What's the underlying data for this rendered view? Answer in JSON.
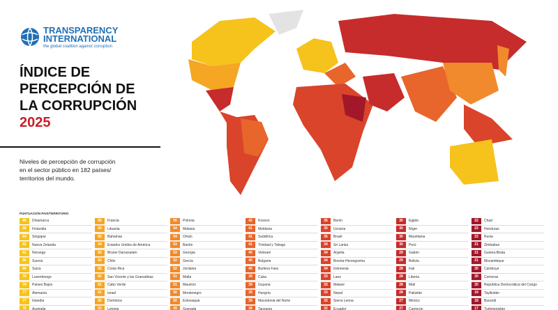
{
  "header": {
    "logo_name": "TRANSPARENCY INTERNATIONAL",
    "logo_tagline": "the global coalition against corruption",
    "title_lines": [
      "ÍNDICE DE",
      "PERCEPCIÓN DE",
      "LA CORRUPCIÓN"
    ],
    "year": "2025",
    "description_lines": [
      "Niveles de percepción de corrupción",
      "en el sector público en 182 países/",
      "territorios del mundo."
    ]
  },
  "table": {
    "header": "PUNTUACIÓN PAÍS/TERRITORIO",
    "columns": [
      {
        "color": "#f6c21c",
        "rows": [
          {
            "score": 89,
            "country": "Dinamarca"
          },
          {
            "score": 88,
            "country": "Finlandia"
          },
          {
            "score": 84,
            "country": "Singapur"
          },
          {
            "score": 81,
            "country": "Nueva Zelanda"
          },
          {
            "score": 81,
            "country": "Noruega"
          },
          {
            "score": 80,
            "country": "Suecia"
          },
          {
            "score": 80,
            "country": "Suiza"
          },
          {
            "score": 78,
            "country": "Luxemburgo"
          },
          {
            "score": 78,
            "country": "Países Bajos"
          },
          {
            "score": 77,
            "country": "Alemania"
          },
          {
            "score": 77,
            "country": "Islandia"
          },
          {
            "score": 76,
            "country": "Australia"
          }
        ]
      },
      {
        "color": "#f5a623",
        "rows": [
          {
            "score": 66,
            "country": "Francia"
          },
          {
            "score": 65,
            "country": "Lituania"
          },
          {
            "score": 65,
            "country": "Bahamas"
          },
          {
            "score": 64,
            "country": "Estados Unidos de América"
          },
          {
            "score": 63,
            "country": "Brunei Darussalam"
          },
          {
            "score": 63,
            "country": "Chile"
          },
          {
            "score": 62,
            "country": "Costa Rica"
          },
          {
            "score": 62,
            "country": "San Vicente y las Granadinas"
          },
          {
            "score": 61,
            "country": "Cabo Verde"
          },
          {
            "score": 61,
            "country": "Israel"
          },
          {
            "score": 60,
            "country": "Dominica"
          },
          {
            "score": 60,
            "country": "Letonia"
          }
        ]
      },
      {
        "color": "#f08a2c",
        "rows": [
          {
            "score": 55,
            "country": "Polonia"
          },
          {
            "score": 54,
            "country": "Malasia"
          },
          {
            "score": 54,
            "country": "Omán"
          },
          {
            "score": 53,
            "country": "Baréin"
          },
          {
            "score": 53,
            "country": "Georgia"
          },
          {
            "score": 52,
            "country": "Grecia"
          },
          {
            "score": 52,
            "country": "Jordania"
          },
          {
            "score": 51,
            "country": "Malta"
          },
          {
            "score": 51,
            "country": "Mauricio"
          },
          {
            "score": 50,
            "country": "Montenegro"
          },
          {
            "score": 50,
            "country": "Eslovaquia"
          },
          {
            "score": 49,
            "country": "Granada"
          }
        ]
      },
      {
        "color": "#e8652b",
        "rows": [
          {
            "score": 42,
            "country": "Kosovo"
          },
          {
            "score": 41,
            "country": "Moldavia"
          },
          {
            "score": 41,
            "country": "Sudáfrica"
          },
          {
            "score": 41,
            "country": "Trinidad y Tobago"
          },
          {
            "score": 40,
            "country": "Vietnam"
          },
          {
            "score": 40,
            "country": "Bulgaria"
          },
          {
            "score": 40,
            "country": "Burkina Faso"
          },
          {
            "score": 39,
            "country": "Cuba"
          },
          {
            "score": 39,
            "country": "Guyana"
          },
          {
            "score": 39,
            "country": "Hungría"
          },
          {
            "score": 39,
            "country": "Macedonia del Norte"
          },
          {
            "score": 38,
            "country": "Tanzania"
          }
        ]
      },
      {
        "color": "#d9442b",
        "rows": [
          {
            "score": 35,
            "country": "Benín"
          },
          {
            "score": 35,
            "country": "Ucrania"
          },
          {
            "score": 35,
            "country": "Brasil"
          },
          {
            "score": 34,
            "country": "Sri Lanka"
          },
          {
            "score": 34,
            "country": "Argelia"
          },
          {
            "score": 34,
            "country": "Bosnia-Herzegovina"
          },
          {
            "score": 34,
            "country": "Indonesia"
          },
          {
            "score": 33,
            "country": "Laos"
          },
          {
            "score": 33,
            "country": "Malawi"
          },
          {
            "score": 33,
            "country": "Nepal"
          },
          {
            "score": 33,
            "country": "Sierra Leona"
          },
          {
            "score": 32,
            "country": "Ecuador"
          }
        ]
      },
      {
        "color": "#c62c2b",
        "rows": [
          {
            "score": 30,
            "country": "Egipto"
          },
          {
            "score": 30,
            "country": "Níger"
          },
          {
            "score": 30,
            "country": "Mauritania"
          },
          {
            "score": 30,
            "country": "Perú"
          },
          {
            "score": 29,
            "country": "Gabón"
          },
          {
            "score": 29,
            "country": "Bolivia"
          },
          {
            "score": 28,
            "country": "Irak"
          },
          {
            "score": 28,
            "country": "Liberia"
          },
          {
            "score": 28,
            "country": "Malí"
          },
          {
            "score": 28,
            "country": "Pakistán"
          },
          {
            "score": 27,
            "country": "México"
          },
          {
            "score": 27,
            "country": "Camerún"
          }
        ]
      },
      {
        "color": "#a3172a",
        "rows": [
          {
            "score": 22,
            "country": "Chad"
          },
          {
            "score": 22,
            "country": "Honduras"
          },
          {
            "score": 22,
            "country": "Rusia"
          },
          {
            "score": 21,
            "country": "Zimbabue"
          },
          {
            "score": 21,
            "country": "Guinea-Bisáu"
          },
          {
            "score": 21,
            "country": "Mozambique"
          },
          {
            "score": 20,
            "country": "Camboya"
          },
          {
            "score": 20,
            "country": "Comoras"
          },
          {
            "score": 20,
            "country": "República Democrática del Congo"
          },
          {
            "score": 19,
            "country": "Tayikistán"
          },
          {
            "score": 18,
            "country": "Burundi"
          },
          {
            "score": 17,
            "country": "Turkmenistán"
          }
        ]
      }
    ]
  }
}
